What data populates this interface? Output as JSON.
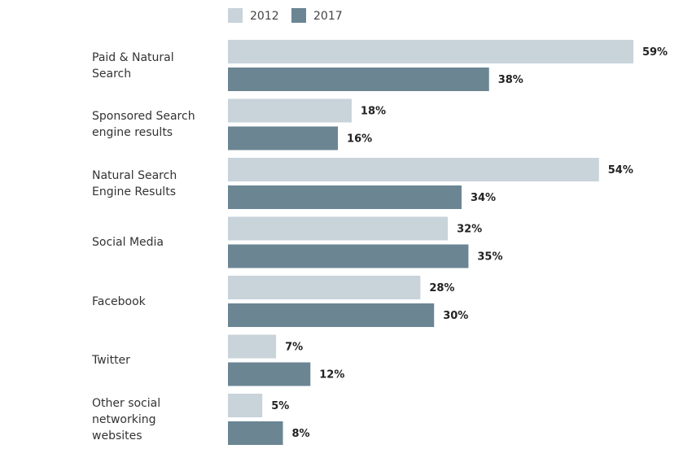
{
  "chart_data": {
    "type": "bar",
    "orientation": "horizontal",
    "categories": [
      "Paid & Natural Search",
      "Sponsored Search engine results",
      "Natural Search Engine Results",
      "Social Media",
      "Facebook",
      "Twitter",
      "Other social networking websites"
    ],
    "series": [
      {
        "name": "2012",
        "color": "#c8d3da",
        "values": [
          59,
          18,
          54,
          32,
          28,
          7,
          5
        ],
        "value_labels": [
          "59%",
          "18%",
          "54%",
          "32%",
          "28%",
          "7%",
          "5%"
        ]
      },
      {
        "name": "2017",
        "color": "#6b8593",
        "values": [
          38,
          16,
          34,
          35,
          30,
          12,
          8
        ],
        "value_labels": [
          "38%",
          "16%",
          "34%",
          "35%",
          "30%",
          "12%",
          "8%"
        ]
      }
    ]
  }
}
